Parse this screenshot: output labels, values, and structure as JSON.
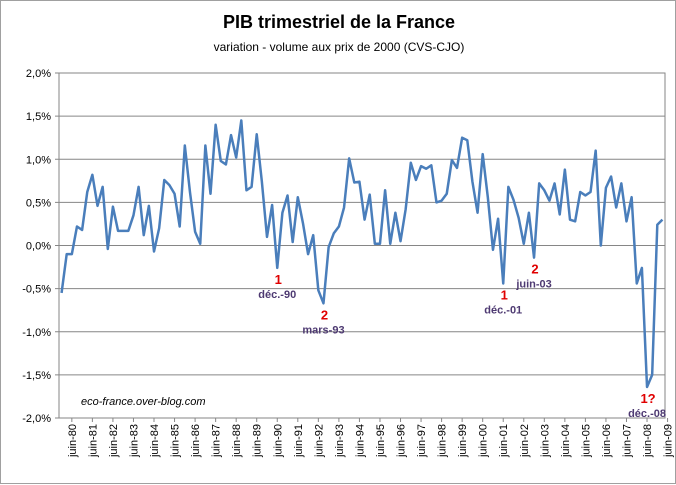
{
  "chart_data": {
    "type": "line",
    "title": "PIB trimestriel de la France",
    "subtitle": "variation - volume aux prix de 2000  (CVS-CJO)",
    "ylim": [
      -2.0,
      2.0
    ],
    "y_ticks": [
      "2,0%",
      "1,5%",
      "1,0%",
      "0,5%",
      "0,0%",
      "-0,5%",
      "-1,0%",
      "-1,5%",
      "-2,0%"
    ],
    "x_ticks": [
      "juin-80",
      "juin-81",
      "juin-82",
      "juin-83",
      "juin-84",
      "juin-85",
      "juin-86",
      "juin-87",
      "juin-88",
      "juin-89",
      "juin-90",
      "juin-91",
      "juin-92",
      "juin-93",
      "juin-94",
      "juin-95",
      "juin-96",
      "juin-97",
      "juin-98",
      "juin-99",
      "juin-00",
      "juin-01",
      "juin-02",
      "juin-03",
      "juin-04",
      "juin-05",
      "juin-06",
      "juin-07",
      "juin-08",
      "juin-09"
    ],
    "grid": true,
    "legend": "none",
    "line_color": "#4a7ebb",
    "series": [
      {
        "values": [
          -0.55,
          -0.1,
          -0.1,
          0.22,
          0.18,
          0.62,
          0.82,
          0.46,
          0.68,
          -0.04,
          0.45,
          0.17,
          0.17,
          0.17,
          0.35,
          0.68,
          0.12,
          0.46,
          -0.07,
          0.2,
          0.76,
          0.7,
          0.6,
          0.22,
          1.16,
          0.62,
          0.16,
          0.02,
          1.16,
          0.6,
          1.4,
          0.98,
          0.94,
          1.28,
          1.02,
          1.45,
          0.64,
          0.68,
          1.29,
          0.74,
          0.1,
          0.47,
          -0.26,
          0.38,
          0.58,
          0.04,
          0.56,
          0.26,
          -0.1,
          0.12,
          -0.52,
          -0.67,
          -0.02,
          0.14,
          0.22,
          0.44,
          1.01,
          0.73,
          0.74,
          0.3,
          0.59,
          0.02,
          0.02,
          0.64,
          0.02,
          0.38,
          0.05,
          0.42,
          0.96,
          0.76,
          0.92,
          0.89,
          0.93,
          0.5,
          0.52,
          0.6,
          0.99,
          0.9,
          1.25,
          1.22,
          0.74,
          0.38,
          1.06,
          0.56,
          -0.05,
          0.31,
          -0.44,
          0.68,
          0.53,
          0.32,
          0.02,
          0.38,
          -0.14,
          0.72,
          0.64,
          0.52,
          0.72,
          0.36,
          0.88,
          0.3,
          0.28,
          0.62,
          0.58,
          0.62,
          1.1,
          0.0,
          0.67,
          0.8,
          0.44,
          0.72,
          0.28,
          0.56,
          -0.44,
          -0.26,
          -1.64,
          -1.5,
          0.24,
          0.3
        ]
      }
    ],
    "annotations": [
      {
        "number": "1",
        "date": "déc.-90"
      },
      {
        "number": "2",
        "date": "mars-93"
      },
      {
        "number": "1",
        "date": "déc.-01"
      },
      {
        "number": "2",
        "date": "juin-03"
      },
      {
        "number": "1?",
        "date": "déc.-08"
      }
    ],
    "annotation_number_color": "#e00000",
    "annotation_date_color": "#4e3a72",
    "watermark": "eco-france.over-blog.com"
  }
}
